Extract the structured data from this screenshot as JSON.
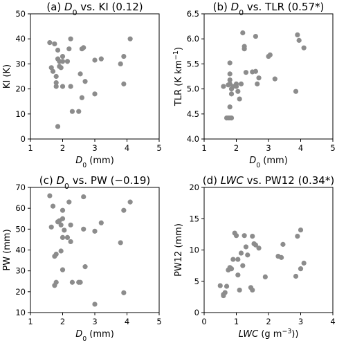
{
  "chart_data": [
    {
      "type": "scatter",
      "title": "(a) D0 vs. KI (0.12)",
      "title_parts": [
        {
          "t": "(a) ",
          "s": "n"
        },
        {
          "t": "D",
          "s": "i"
        },
        {
          "t": "0",
          "s": "sub"
        },
        {
          "t": " vs. KI (0.12)",
          "s": "n"
        }
      ],
      "xlabel": "D0 (mm)",
      "xlabel_parts": [
        {
          "t": "D",
          "s": "i"
        },
        {
          "t": "0",
          "s": "sub"
        },
        {
          "t": " (mm)",
          "s": "n"
        }
      ],
      "ylabel": "KI (K)",
      "xlim": [
        1,
        5
      ],
      "ylim": [
        0,
        50
      ],
      "xticks": [
        "1",
        "2",
        "3",
        "4",
        "5"
      ],
      "yticks": [
        "0",
        "10",
        "20",
        "30",
        "40",
        "50"
      ],
      "point_color": "#8c8c8c",
      "points": [
        [
          1.6,
          38.5
        ],
        [
          1.75,
          38
        ],
        [
          1.65,
          28.5
        ],
        [
          1.7,
          27
        ],
        [
          1.8,
          25
        ],
        [
          1.8,
          22.5
        ],
        [
          1.8,
          21
        ],
        [
          1.85,
          35.5
        ],
        [
          1.85,
          32
        ],
        [
          1.9,
          31
        ],
        [
          1.9,
          29
        ],
        [
          1.95,
          28.5
        ],
        [
          1.85,
          5
        ],
        [
          2.0,
          33
        ],
        [
          2.0,
          31
        ],
        [
          2.0,
          21
        ],
        [
          2.15,
          31
        ],
        [
          2.2,
          36
        ],
        [
          2.25,
          40
        ],
        [
          2.25,
          21
        ],
        [
          2.3,
          11
        ],
        [
          2.5,
          11
        ],
        [
          2.55,
          26
        ],
        [
          2.6,
          36
        ],
        [
          2.65,
          36.5
        ],
        [
          2.7,
          23
        ],
        [
          2.6,
          16.5
        ],
        [
          3.0,
          31.5
        ],
        [
          3.0,
          18
        ],
        [
          3.2,
          32
        ],
        [
          3.8,
          30
        ],
        [
          3.9,
          33
        ],
        [
          3.9,
          22
        ],
        [
          4.1,
          40
        ]
      ]
    },
    {
      "type": "scatter",
      "title": "(b) D0 vs. TLR (0.57*)",
      "title_parts": [
        {
          "t": "(b) ",
          "s": "n"
        },
        {
          "t": "D",
          "s": "i"
        },
        {
          "t": "0",
          "s": "sub"
        },
        {
          "t": " vs. TLR (0.57*)",
          "s": "n"
        }
      ],
      "xlabel": "D0 (mm)",
      "xlabel_parts": [
        {
          "t": "D",
          "s": "i"
        },
        {
          "t": "0",
          "s": "sub"
        },
        {
          "t": " (mm)",
          "s": "n"
        }
      ],
      "ylabel": "TLR (K km−1)",
      "ylabel_parts": [
        {
          "t": "TLR (K km",
          "s": "n"
        },
        {
          "t": "−1",
          "s": "sup"
        },
        {
          "t": ")",
          "s": "n"
        }
      ],
      "xlim": [
        1,
        5
      ],
      "ylim": [
        4.0,
        6.5
      ],
      "xticks": [
        "1",
        "2",
        "3",
        "4",
        "5"
      ],
      "yticks": [
        "4.0",
        "4.5",
        "5.0",
        "5.5",
        "6.0",
        "6.5"
      ],
      "point_color": "#8c8c8c",
      "points": [
        [
          1.6,
          5.05
        ],
        [
          1.7,
          4.42
        ],
        [
          1.75,
          4.42
        ],
        [
          1.8,
          4.42
        ],
        [
          1.85,
          4.42
        ],
        [
          1.8,
          4.64
        ],
        [
          1.75,
          5.08
        ],
        [
          1.8,
          5.1
        ],
        [
          1.8,
          5.18
        ],
        [
          1.8,
          5.3
        ],
        [
          1.85,
          5.0
        ],
        [
          1.85,
          4.9
        ],
        [
          1.8,
          5.52
        ],
        [
          1.9,
          5.05
        ],
        [
          2.0,
          5.05
        ],
        [
          2.0,
          5.1
        ],
        [
          2.1,
          4.8
        ],
        [
          2.05,
          4.95
        ],
        [
          2.15,
          5.1
        ],
        [
          2.2,
          6.12
        ],
        [
          2.25,
          5.85
        ],
        [
          2.25,
          5.8
        ],
        [
          2.3,
          5.33
        ],
        [
          2.5,
          5.34
        ],
        [
          2.6,
          5.35
        ],
        [
          2.6,
          6.05
        ],
        [
          2.65,
          5.1
        ],
        [
          2.7,
          5.22
        ],
        [
          3.0,
          5.65
        ],
        [
          3.05,
          5.68
        ],
        [
          3.2,
          5.2
        ],
        [
          3.85,
          4.95
        ],
        [
          3.9,
          6.08
        ],
        [
          3.95,
          5.97
        ],
        [
          4.1,
          5.82
        ]
      ]
    },
    {
      "type": "scatter",
      "title": "(c) D0 vs. PW (−0.19)",
      "title_parts": [
        {
          "t": "(c) ",
          "s": "n"
        },
        {
          "t": "D",
          "s": "i"
        },
        {
          "t": "0",
          "s": "sub"
        },
        {
          "t": " vs. PW (−0.19)",
          "s": "n"
        }
      ],
      "xlabel": "D0 (mm)",
      "xlabel_parts": [
        {
          "t": "D",
          "s": "i"
        },
        {
          "t": "0",
          "s": "sub"
        },
        {
          "t": " (mm)",
          "s": "n"
        }
      ],
      "ylabel": "PW (mm)",
      "xlim": [
        1,
        5
      ],
      "ylim": [
        10,
        70
      ],
      "xticks": [
        "1",
        "2",
        "3",
        "4",
        "5"
      ],
      "yticks": [
        "10",
        "20",
        "30",
        "40",
        "50",
        "60",
        "70"
      ],
      "point_color": "#8c8c8c",
      "points": [
        [
          1.6,
          66
        ],
        [
          1.7,
          61
        ],
        [
          1.65,
          51
        ],
        [
          1.75,
          37
        ],
        [
          1.8,
          38
        ],
        [
          1.8,
          24.5
        ],
        [
          1.75,
          23
        ],
        [
          1.85,
          53.5
        ],
        [
          1.9,
          54
        ],
        [
          1.95,
          52
        ],
        [
          1.95,
          39.5
        ],
        [
          2.0,
          46
        ],
        [
          2.0,
          30.5
        ],
        [
          2.0,
          59
        ],
        [
          2.0,
          55
        ],
        [
          2.05,
          49.5
        ],
        [
          2.15,
          46
        ],
        [
          2.2,
          63
        ],
        [
          2.25,
          44
        ],
        [
          2.25,
          52
        ],
        [
          2.3,
          24.5
        ],
        [
          2.5,
          24.5
        ],
        [
          2.55,
          24.5
        ],
        [
          2.65,
          65.5
        ],
        [
          2.65,
          50
        ],
        [
          2.7,
          32
        ],
        [
          3.0,
          49
        ],
        [
          3.0,
          14
        ],
        [
          3.2,
          53
        ],
        [
          3.8,
          43.5
        ],
        [
          3.9,
          59
        ],
        [
          3.9,
          19.5
        ],
        [
          4.1,
          63
        ]
      ]
    },
    {
      "type": "scatter",
      "title": "(d) LWC vs. PW12 (0.34*)",
      "title_parts": [
        {
          "t": "(d) ",
          "s": "n"
        },
        {
          "t": "LWC",
          "s": "i"
        },
        {
          "t": " vs. PW12 (0.34*)",
          "s": "n"
        }
      ],
      "xlabel": "LWC (g m−3))",
      "xlabel_parts": [
        {
          "t": "LWC",
          "s": "i"
        },
        {
          "t": " (g m",
          "s": "n"
        },
        {
          "t": "−3",
          "s": "sup"
        },
        {
          "t": "))",
          "s": "n"
        }
      ],
      "ylabel": "PW12 (mm)",
      "xlim": [
        0,
        4
      ],
      "ylim": [
        0,
        20
      ],
      "xticks": [
        "0",
        "1",
        "2",
        "3",
        "4"
      ],
      "yticks": [
        "0",
        "5",
        "10",
        "15",
        "20"
      ],
      "point_color": "#8c8c8c",
      "points": [
        [
          0.5,
          4.3
        ],
        [
          0.6,
          2.7
        ],
        [
          0.6,
          2.9
        ],
        [
          0.65,
          3.2
        ],
        [
          0.7,
          4.2
        ],
        [
          0.75,
          6.8
        ],
        [
          0.8,
          7.2
        ],
        [
          0.85,
          7.0
        ],
        [
          0.9,
          8.5
        ],
        [
          0.95,
          12.7
        ],
        [
          1.0,
          12.3
        ],
        [
          1.05,
          8.5
        ],
        [
          1.05,
          6.0
        ],
        [
          1.1,
          3.6
        ],
        [
          1.15,
          9.5
        ],
        [
          1.2,
          7.5
        ],
        [
          1.25,
          12.3
        ],
        [
          1.3,
          10.5
        ],
        [
          1.35,
          9.2
        ],
        [
          1.45,
          4.0
        ],
        [
          1.5,
          3.6
        ],
        [
          1.5,
          12.2
        ],
        [
          1.55,
          11.0
        ],
        [
          1.6,
          10.8
        ],
        [
          1.7,
          10.3
        ],
        [
          1.9,
          5.7
        ],
        [
          2.3,
          9.0
        ],
        [
          2.45,
          10.9
        ],
        [
          2.4,
          8.8
        ],
        [
          2.85,
          5.8
        ],
        [
          2.9,
          12.2
        ],
        [
          3.0,
          13.2
        ],
        [
          3.0,
          7.0
        ],
        [
          3.1,
          7.9
        ]
      ]
    }
  ]
}
